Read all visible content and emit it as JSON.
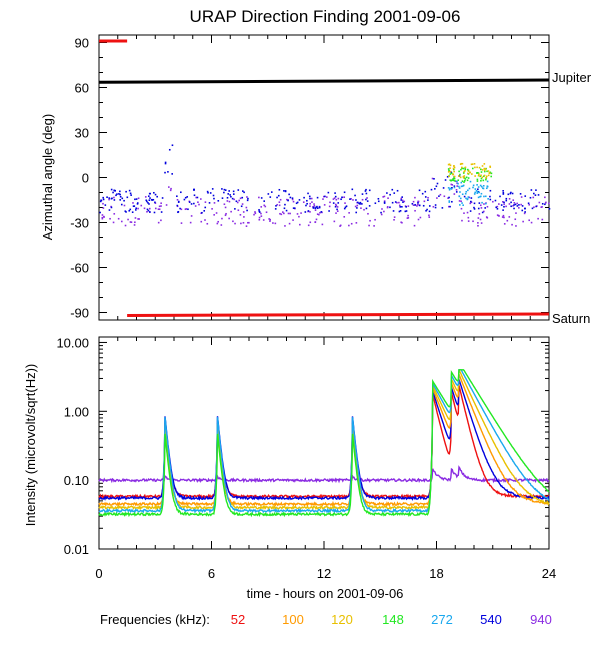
{
  "chart_data": {
    "title": "URAP Direction Finding  2001-09-06",
    "xlabel": "time - hours on 2001-09-06",
    "x_ticks": [
      "0",
      "6",
      "12",
      "18",
      "24"
    ],
    "x_tick_values": [
      0,
      6,
      12,
      18,
      24
    ],
    "xlim": [
      0,
      24
    ],
    "legend": {
      "label": "Frequencies (kHz):",
      "entries": [
        {
          "name": "52",
          "color": "#ee1111"
        },
        {
          "name": "100",
          "color": "#ff9a00"
        },
        {
          "name": "120",
          "color": "#e8c000"
        },
        {
          "name": "148",
          "color": "#22e822"
        },
        {
          "name": "272",
          "color": "#1aa8ee"
        },
        {
          "name": "540",
          "color": "#0000dd"
        },
        {
          "name": "940",
          "color": "#8a2be2"
        }
      ]
    },
    "panels": [
      {
        "type": "scatter",
        "ylabel": "Azimuthal angle (deg)",
        "ylim": [
          -95,
          95
        ],
        "y_ticks": [
          "90",
          "60",
          "30",
          "0",
          "-30",
          "-60",
          "-90"
        ],
        "y_tick_values": [
          90,
          60,
          30,
          0,
          -30,
          -60,
          -90
        ],
        "reference_lines": [
          {
            "name": "Jupiter",
            "color": "#000000",
            "x": [
              0,
              24
            ],
            "y": [
              63.5,
              65
            ]
          },
          {
            "name": "Saturn",
            "color": "#ee1111",
            "x": [
              1.5,
              24
            ],
            "y": [
              -92,
              -91
            ]
          }
        ],
        "red_segment_top": {
          "x": [
            0,
            1.5
          ],
          "y": 91,
          "color": "#ee1111"
        },
        "series": [
          {
            "name": "940",
            "color": "#8a2be2",
            "baseline": -22,
            "spread": 10
          },
          {
            "name": "540",
            "color": "#0000dd",
            "baseline": -15,
            "spread": 8
          },
          {
            "name": "272",
            "color": "#1aa8ee",
            "baseline": -10,
            "spread": 8
          },
          {
            "name": "148",
            "color": "#22e822",
            "baseline": 2,
            "spread": 5
          },
          {
            "name": "120",
            "color": "#e8c000",
            "baseline": 5,
            "spread": 5
          }
        ]
      },
      {
        "type": "line",
        "yscale": "log",
        "ylabel": "Intensity (microvolt/sqrt(Hz))",
        "ylim": [
          0.01,
          12
        ],
        "y_ticks": [
          "10.00",
          "1.00",
          "0.10",
          "0.01"
        ],
        "y_tick_values": [
          10,
          1,
          0.1,
          0.01
        ],
        "series": [
          {
            "name": "940",
            "color": "#8a2be2",
            "baseline": 0.1
          },
          {
            "name": "52",
            "color": "#ee1111",
            "baseline": 0.058
          },
          {
            "name": "540",
            "color": "#0000dd",
            "baseline": 0.055
          },
          {
            "name": "100",
            "color": "#ff9a00",
            "baseline": 0.045
          },
          {
            "name": "120",
            "color": "#e8c000",
            "baseline": 0.04
          },
          {
            "name": "272",
            "color": "#1aa8ee",
            "baseline": 0.036
          },
          {
            "name": "148",
            "color": "#22e822",
            "baseline": 0.032
          }
        ],
        "bursts_hours": [
          3.5,
          6.3,
          13.5,
          17.8,
          18.8,
          19.2
        ]
      }
    ],
    "right_labels": [
      "Jupiter",
      "Saturn"
    ]
  }
}
